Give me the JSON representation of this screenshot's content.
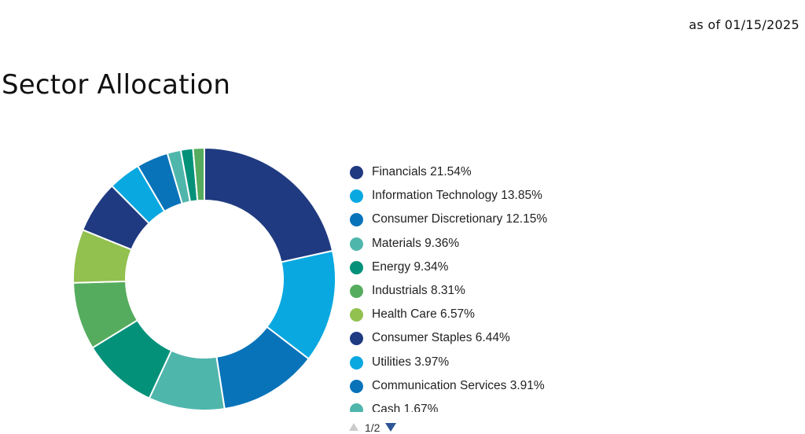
{
  "as_of": "as of 01/15/2025",
  "chart_data": {
    "type": "pie",
    "title": "Sector Allocation",
    "legend_placement": "right",
    "slices": [
      {
        "label": "Financials",
        "value_text": "21.54%",
        "value": 21.54,
        "color": "#1f3a80"
      },
      {
        "label": "Information Technology",
        "value_text": "13.85%",
        "value": 13.85,
        "color": "#0aa8e0"
      },
      {
        "label": "Consumer Discretionary",
        "value_text": "12.15%",
        "value": 12.15,
        "color": "#0873b9"
      },
      {
        "label": "Materials",
        "value_text": "9.36%",
        "value": 9.36,
        "color": "#4fb6ac"
      },
      {
        "label": "Energy",
        "value_text": "9.34%",
        "value": 9.34,
        "color": "#04917a"
      },
      {
        "label": "Industrials",
        "value_text": "8.31%",
        "value": 8.31,
        "color": "#55ac5e"
      },
      {
        "label": "Health Care",
        "value_text": "6.57%",
        "value": 6.57,
        "color": "#92c14f"
      },
      {
        "label": "Consumer Staples",
        "value_text": "6.44%",
        "value": 6.44,
        "color": "#1f3a80"
      },
      {
        "label": "Utilities",
        "value_text": "3.97%",
        "value": 3.97,
        "color": "#0aa8e0"
      },
      {
        "label": "Communication Services",
        "value_text": "3.91%",
        "value": 3.91,
        "color": "#0873b9"
      },
      {
        "label": "Cash",
        "value_text": "1.67%",
        "value": 1.67,
        "color": "#4fb6ac"
      },
      {
        "label": "",
        "value_text": "",
        "value": 1.5,
        "color": "#04917a"
      },
      {
        "label": "",
        "value_text": "",
        "value": 1.39,
        "color": "#55ac5e"
      }
    ]
  },
  "legend": {
    "items": [
      "Financials 21.54%",
      "Information Technology 13.85%",
      "Consumer Discretionary 12.15%",
      "Materials 9.36%",
      "Energy 9.34%",
      "Industrials 8.31%",
      "Health Care 6.57%",
      "Consumer Staples 6.44%",
      "Utilities 3.97%",
      "Communication Services 3.91%",
      "Cash 1.67%"
    ],
    "page": "1/2",
    "icons": {
      "prev": "triangle-up-icon",
      "next": "triangle-down-icon"
    },
    "colors": {
      "prev_disabled": "#cccccc",
      "next_active": "#2f5597"
    }
  }
}
